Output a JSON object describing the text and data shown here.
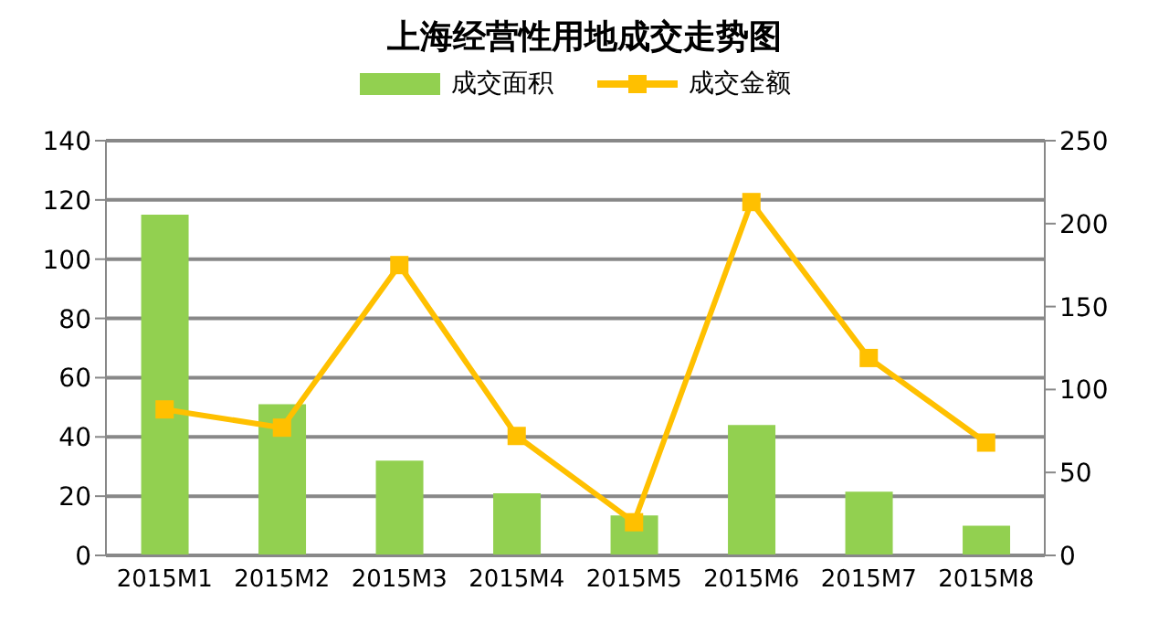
{
  "chart_data": {
    "type": "bar",
    "title": "上海经营性用地成交走势图",
    "categories": [
      "2015M1",
      "2015M2",
      "2015M3",
      "2015M4",
      "2015M5",
      "2015M6",
      "2015M7",
      "2015M8"
    ],
    "series": [
      {
        "name": "成交面积",
        "color": "#92d050",
        "values": [
          115,
          51,
          32,
          21,
          13.5,
          44,
          21.5,
          10
        ]
      },
      {
        "name": "成交金额",
        "type": "line",
        "axis": "y2",
        "color": "#ffc000",
        "values": [
          88,
          77,
          175,
          72,
          20,
          213,
          119,
          68
        ]
      }
    ],
    "ylim": [
      0,
      140
    ],
    "yticks": [
      0,
      20,
      40,
      60,
      80,
      100,
      120,
      140
    ],
    "y2lim": [
      0,
      250
    ],
    "y2ticks": [
      0,
      50,
      100,
      150,
      200,
      250
    ],
    "grid": "y",
    "legend": "top",
    "marker": "square"
  }
}
